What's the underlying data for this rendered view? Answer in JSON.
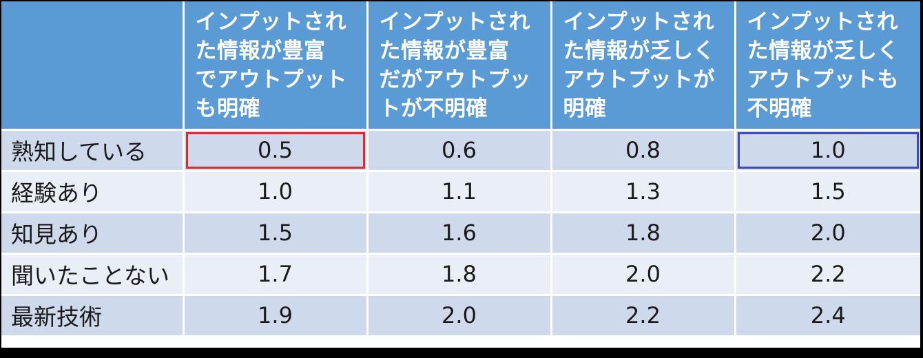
{
  "table": {
    "corner": "",
    "columns": [
      "インプットされ\nた情報が豊富\nでアウトプット\nも明確",
      "インプットされ\nた情報が豊富\nだがアウトプッ\nトが不明確",
      "インプットされ\nた情報が乏しく\nアウトプットが\n明確",
      "インプットされ\nた情報が乏しく\nアウトプットも\n不明確"
    ],
    "rows": [
      {
        "label": "熟知している",
        "values": [
          "0.5",
          "0.6",
          "0.8",
          "1.0"
        ]
      },
      {
        "label": "経験あり",
        "values": [
          "1.0",
          "1.1",
          "1.3",
          "1.5"
        ]
      },
      {
        "label": "知見あり",
        "values": [
          "1.5",
          "1.6",
          "1.8",
          "2.0"
        ]
      },
      {
        "label": "聞いたことない",
        "values": [
          "1.7",
          "1.8",
          "2.0",
          "2.2"
        ]
      },
      {
        "label": "最新技術",
        "values": [
          "1.9",
          "2.0",
          "2.2",
          "2.4"
        ]
      }
    ]
  },
  "colors": {
    "header": "#5b9bd5",
    "row_odd": "#cfd9ec",
    "row_even": "#e9eef7",
    "highlight_red": "#dd2a2a",
    "highlight_blue": "#3e48bf"
  }
}
